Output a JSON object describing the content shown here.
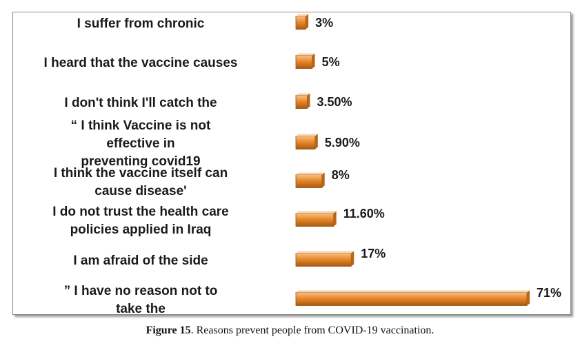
{
  "chart_data": {
    "type": "bar",
    "orientation": "horizontal",
    "categories": [
      [
        "I suffer from chronic"
      ],
      [
        "I heard that the vaccine causes"
      ],
      [
        "I don't think I'll catch the"
      ],
      [
        "“ I think Vaccine is not",
        "effective in",
        "preventing covid19"
      ],
      [
        "I think the vaccine itself can",
        "cause disease'"
      ],
      [
        "I do not trust the health care",
        "policies applied in Iraq"
      ],
      [
        "I am afraid of the side"
      ],
      [
        "” I have no reason not to",
        "take the"
      ]
    ],
    "values": [
      3,
      5,
      3.5,
      5.9,
      8,
      11.6,
      17,
      71
    ],
    "value_labels": [
      "3%",
      "5%",
      "3.50%",
      "5.90%",
      "8%",
      "11.60%",
      "17%",
      "71%"
    ],
    "xlim": [
      0,
      71
    ],
    "grid": false,
    "legend": "none",
    "bar_color": "#e8892a"
  },
  "caption": {
    "label": "Figure 15",
    "text": ". Reasons prevent people from COVID-19 vaccination."
  }
}
